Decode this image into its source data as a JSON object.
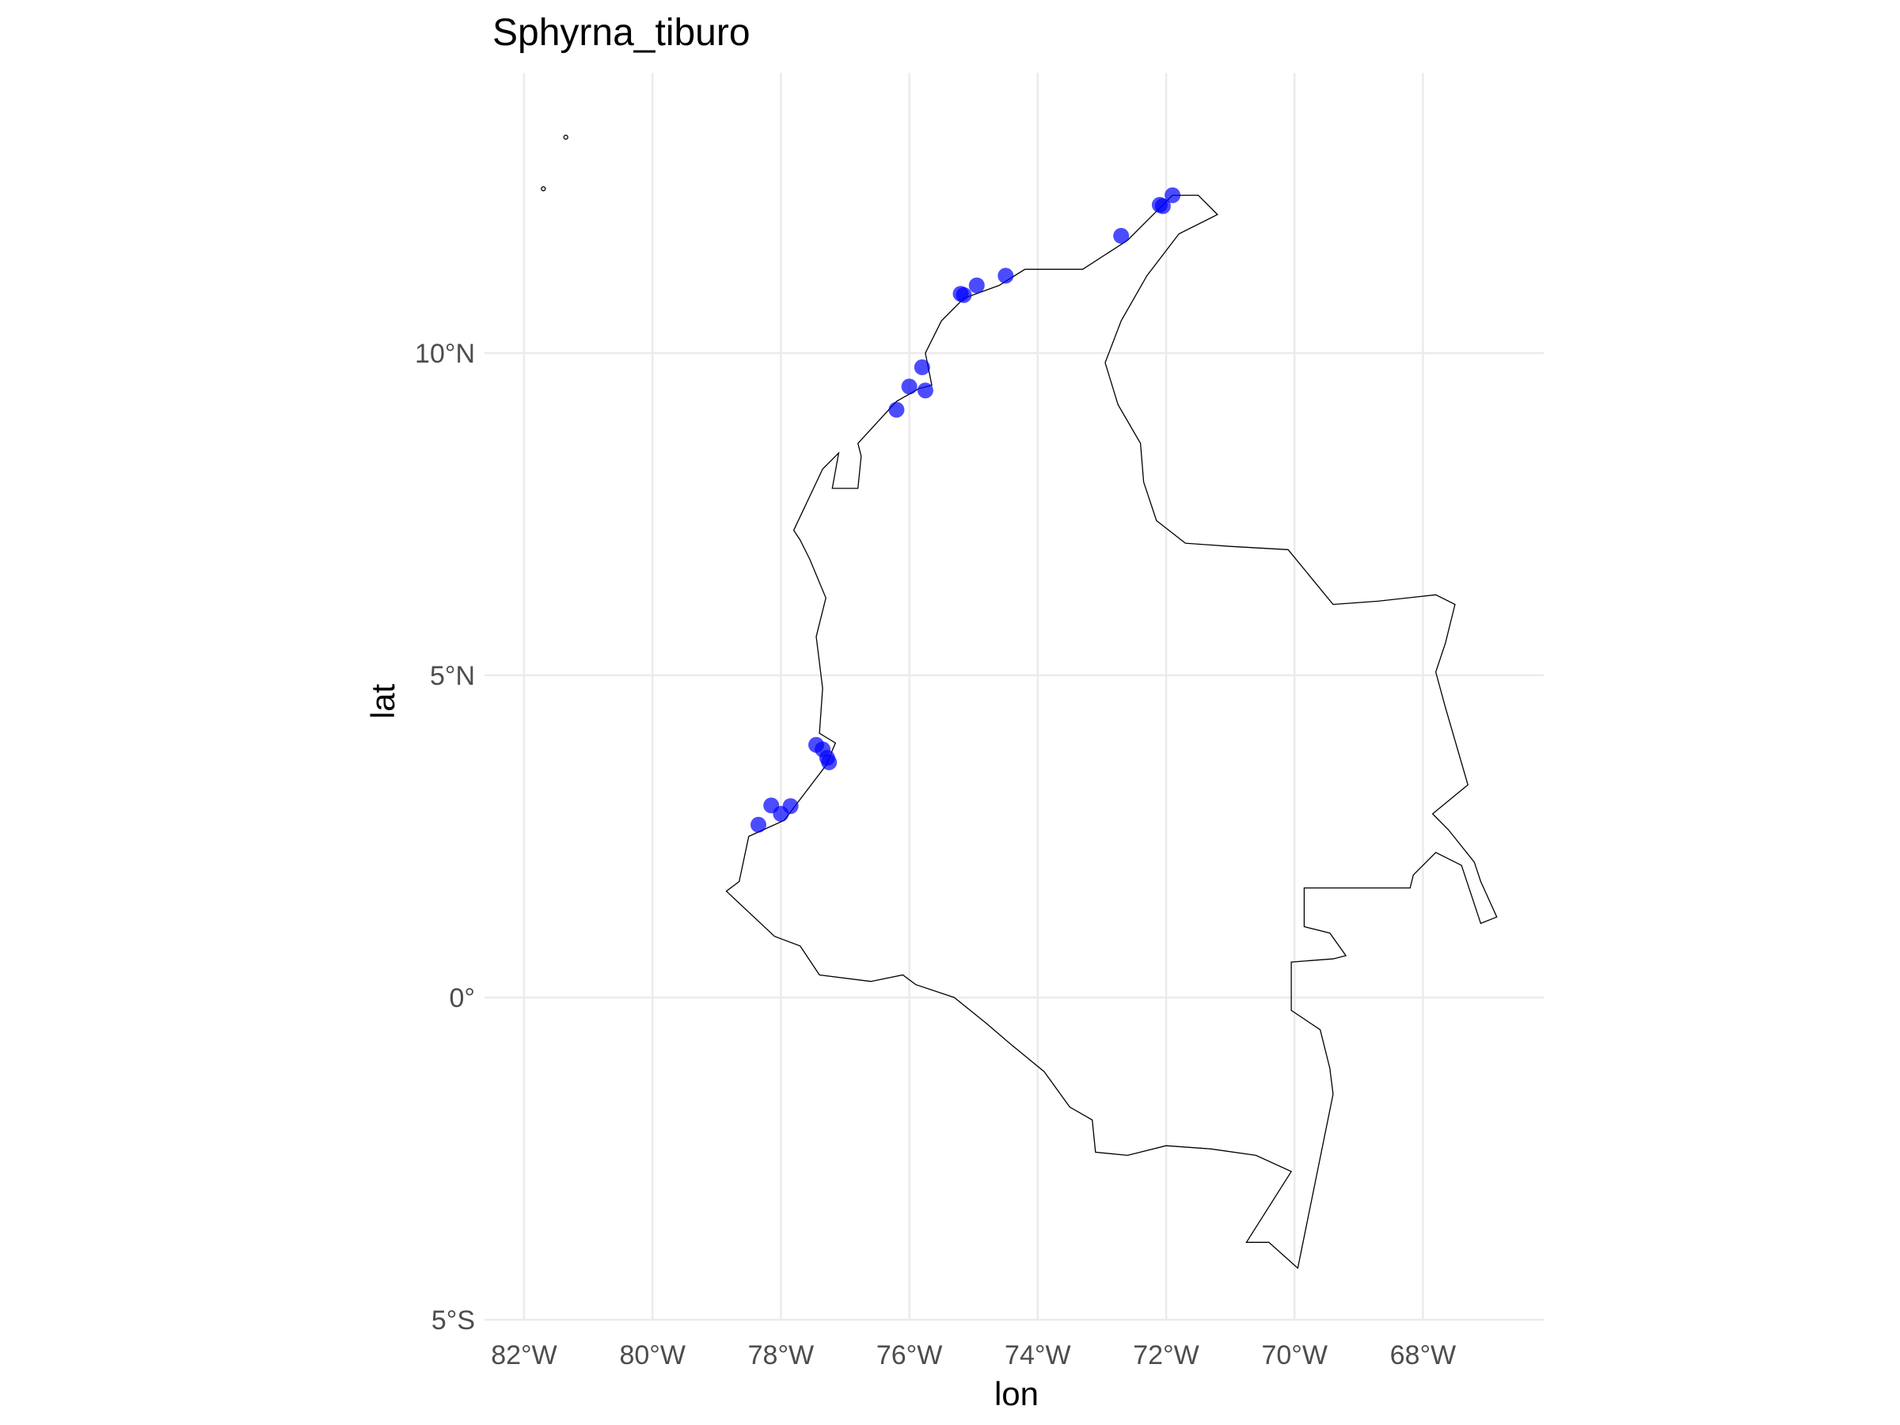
{
  "chart_data": {
    "type": "scatter",
    "title": "Sphyrna_tiburo",
    "xlabel": "lon",
    "ylabel": "lat",
    "xlim": [
      -82.3,
      -66.3
    ],
    "ylim": [
      -5,
      14.3
    ],
    "x_ticks": [
      {
        "value": -82,
        "label": "82°W"
      },
      {
        "value": -80,
        "label": "80°W"
      },
      {
        "value": -78,
        "label": "78°W"
      },
      {
        "value": -76,
        "label": "76°W"
      },
      {
        "value": -74,
        "label": "74°W"
      },
      {
        "value": -72,
        "label": "72°W"
      },
      {
        "value": -70,
        "label": "70°W"
      },
      {
        "value": -68,
        "label": "68°W"
      }
    ],
    "y_ticks": [
      {
        "value": 10,
        "label": "10°N"
      },
      {
        "value": 5,
        "label": "5°N"
      },
      {
        "value": 0,
        "label": "0°"
      },
      {
        "value": -5,
        "label": "5°S"
      }
    ],
    "grid": true,
    "point_color": "#0000ff",
    "point_opacity": 0.7,
    "outline_color": "#000000",
    "points": [
      {
        "x": -71.9,
        "y": 12.45
      },
      {
        "x": -72.1,
        "y": 12.3
      },
      {
        "x": -72.05,
        "y": 12.28
      },
      {
        "x": -72.7,
        "y": 11.82
      },
      {
        "x": -74.5,
        "y": 11.2
      },
      {
        "x": -74.95,
        "y": 11.05
      },
      {
        "x": -75.15,
        "y": 10.9
      },
      {
        "x": -75.2,
        "y": 10.92
      },
      {
        "x": -75.8,
        "y": 9.78
      },
      {
        "x": -76.0,
        "y": 9.48
      },
      {
        "x": -75.75,
        "y": 9.42
      },
      {
        "x": -76.2,
        "y": 9.12
      },
      {
        "x": -77.45,
        "y": 3.92
      },
      {
        "x": -77.35,
        "y": 3.85
      },
      {
        "x": -77.28,
        "y": 3.72
      },
      {
        "x": -77.25,
        "y": 3.65
      },
      {
        "x": -78.15,
        "y": 2.98
      },
      {
        "x": -77.85,
        "y": 2.97
      },
      {
        "x": -78.0,
        "y": 2.85
      },
      {
        "x": -78.35,
        "y": 2.68
      }
    ],
    "outline": [
      [
        -71.5,
        12.45
      ],
      [
        -71.2,
        12.15
      ],
      [
        -71.8,
        11.85
      ],
      [
        -72.3,
        11.2
      ],
      [
        -72.7,
        10.5
      ],
      [
        -72.95,
        9.85
      ],
      [
        -72.75,
        9.2
      ],
      [
        -72.4,
        8.6
      ],
      [
        -72.35,
        8.0
      ],
      [
        -72.15,
        7.4
      ],
      [
        -71.7,
        7.05
      ],
      [
        -71.0,
        7.0
      ],
      [
        -70.1,
        6.95
      ],
      [
        -69.4,
        6.1
      ],
      [
        -68.7,
        6.15
      ],
      [
        -67.8,
        6.25
      ],
      [
        -67.5,
        6.1
      ],
      [
        -67.65,
        5.5
      ],
      [
        -67.8,
        5.05
      ],
      [
        -67.65,
        4.5
      ],
      [
        -67.3,
        3.3
      ],
      [
        -67.85,
        2.85
      ],
      [
        -67.6,
        2.6
      ],
      [
        -67.2,
        2.1
      ],
      [
        -67.1,
        1.8
      ],
      [
        -66.85,
        1.25
      ],
      [
        -67.1,
        1.15
      ],
      [
        -67.4,
        2.05
      ],
      [
        -67.8,
        2.25
      ],
      [
        -68.15,
        1.9
      ],
      [
        -68.2,
        1.7
      ],
      [
        -69.85,
        1.7
      ],
      [
        -69.85,
        1.1
      ],
      [
        -69.45,
        1.0
      ],
      [
        -69.2,
        0.65
      ],
      [
        -69.4,
        0.6
      ],
      [
        -70.05,
        0.55
      ],
      [
        -70.05,
        -0.2
      ],
      [
        -69.6,
        -0.5
      ],
      [
        -69.45,
        -1.1
      ],
      [
        -69.4,
        -1.5
      ],
      [
        -69.95,
        -4.2
      ],
      [
        -70.4,
        -3.8
      ],
      [
        -70.75,
        -3.8
      ],
      [
        -70.05,
        -2.7
      ],
      [
        -70.6,
        -2.45
      ],
      [
        -71.3,
        -2.35
      ],
      [
        -72.0,
        -2.3
      ],
      [
        -72.6,
        -2.45
      ],
      [
        -73.1,
        -2.4
      ],
      [
        -73.15,
        -1.9
      ],
      [
        -73.5,
        -1.7
      ],
      [
        -73.9,
        -1.15
      ],
      [
        -74.45,
        -0.7
      ],
      [
        -74.8,
        -0.4
      ],
      [
        -75.3,
        0.0
      ],
      [
        -75.9,
        0.2
      ],
      [
        -76.1,
        0.35
      ],
      [
        -76.6,
        0.25
      ],
      [
        -77.4,
        0.35
      ],
      [
        -77.7,
        0.8
      ],
      [
        -78.1,
        0.95
      ],
      [
        -78.85,
        1.65
      ],
      [
        -78.65,
        1.8
      ],
      [
        -78.5,
        2.5
      ],
      [
        -77.95,
        2.75
      ],
      [
        -77.3,
        3.6
      ],
      [
        -77.15,
        3.95
      ],
      [
        -77.4,
        4.1
      ],
      [
        -77.35,
        4.8
      ],
      [
        -77.45,
        5.6
      ],
      [
        -77.3,
        6.2
      ],
      [
        -77.55,
        6.8
      ],
      [
        -77.7,
        7.1
      ],
      [
        -77.8,
        7.25
      ],
      [
        -77.35,
        8.2
      ],
      [
        -77.1,
        8.45
      ],
      [
        -77.2,
        7.9
      ],
      [
        -76.8,
        7.9
      ],
      [
        -76.75,
        8.4
      ],
      [
        -76.8,
        8.6
      ],
      [
        -76.2,
        9.25
      ],
      [
        -75.85,
        9.45
      ],
      [
        -75.65,
        9.5
      ],
      [
        -75.75,
        10.0
      ],
      [
        -75.5,
        10.5
      ],
      [
        -75.15,
        10.85
      ],
      [
        -74.6,
        11.05
      ],
      [
        -74.2,
        11.3
      ],
      [
        -73.3,
        11.3
      ],
      [
        -72.6,
        11.75
      ],
      [
        -72.15,
        12.2
      ],
      [
        -71.9,
        12.45
      ],
      [
        -71.5,
        12.45
      ]
    ],
    "islands": [
      {
        "x": -81.7,
        "y": 12.55
      },
      {
        "x": -81.35,
        "y": 13.35
      }
    ]
  }
}
